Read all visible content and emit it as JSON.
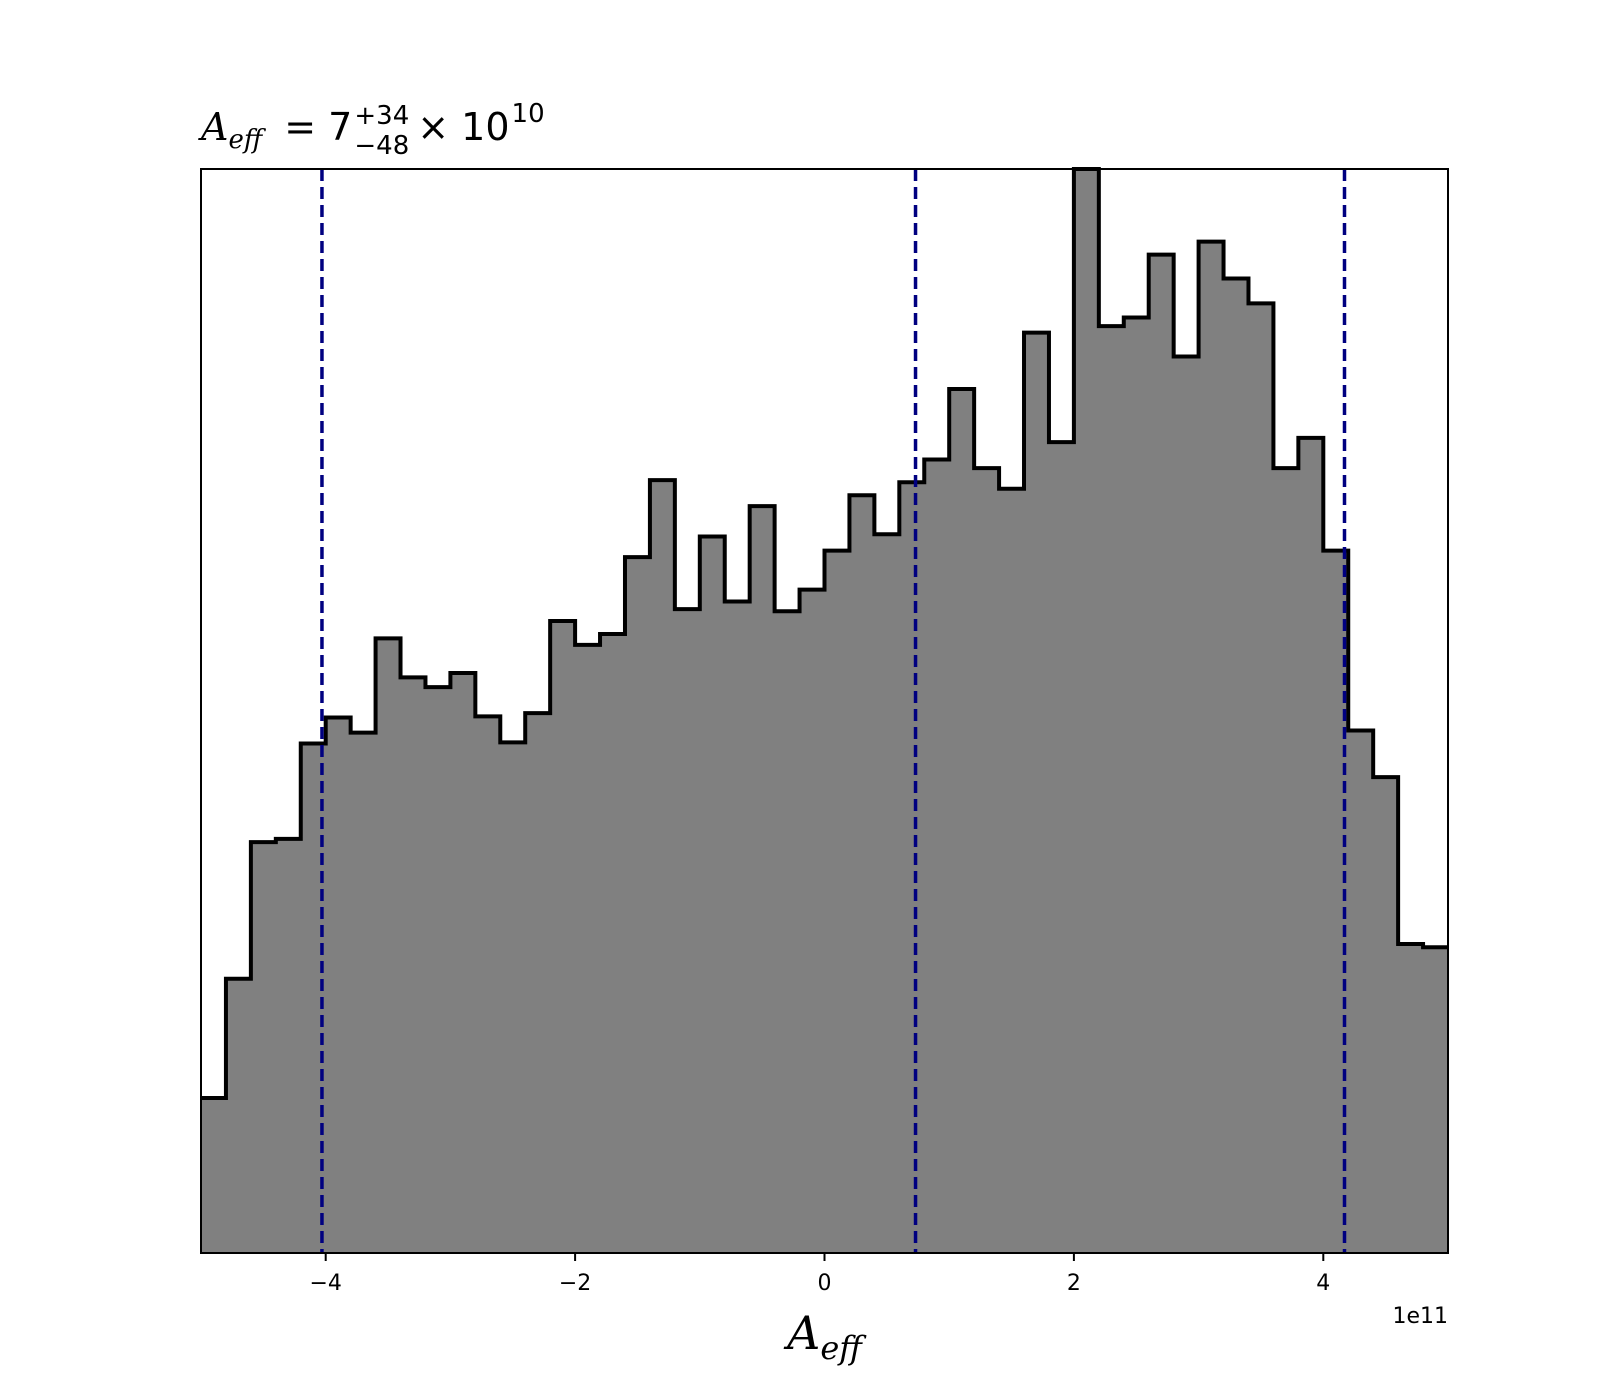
{
  "chart_data": {
    "type": "histogram",
    "title": {
      "var_main": "A",
      "var_sub": "eff",
      "equals": "= 7",
      "sup": "+34",
      "sub": "−48",
      "times": "× 10",
      "exp": "10"
    },
    "xlabel": {
      "main": "A",
      "sub": "eff"
    },
    "offset_text": "1e11",
    "xlim": [
      -5,
      5
    ],
    "ylim": [
      0,
      1
    ],
    "y_axis_visible": false,
    "x_ticks": [
      {
        "value": -4,
        "label": "−4"
      },
      {
        "value": -2,
        "label": "−2"
      },
      {
        "value": 0,
        "label": "0"
      },
      {
        "value": 2,
        "label": "2"
      },
      {
        "value": 4,
        "label": "4"
      }
    ],
    "bin_edges": [
      -5,
      -4.8,
      -4.6,
      -4.4,
      -4.2,
      -4,
      -3.8,
      -3.6,
      -3.4,
      -3.2,
      -3,
      -2.8,
      -2.6,
      -2.4,
      -2.2,
      -2,
      -1.8,
      -1.6,
      -1.4,
      -1.2,
      -1,
      -0.8,
      -0.6,
      -0.4,
      -0.2,
      0,
      0.2,
      0.4,
      0.6,
      0.8,
      1,
      1.2,
      1.4,
      1.6,
      1.8,
      2,
      2.2,
      2.4,
      2.6,
      2.8,
      3,
      3.2,
      3.4,
      3.6,
      3.8,
      4,
      4.2,
      4.4,
      4.6,
      4.8,
      5
    ],
    "counts": [
      0.143,
      0.253,
      0.379,
      0.382,
      0.47,
      0.494,
      0.48,
      0.567,
      0.531,
      0.522,
      0.535,
      0.495,
      0.471,
      0.498,
      0.583,
      0.561,
      0.571,
      0.642,
      0.713,
      0.594,
      0.661,
      0.601,
      0.689,
      0.592,
      0.612,
      0.648,
      0.699,
      0.663,
      0.711,
      0.732,
      0.797,
      0.724,
      0.705,
      0.849,
      0.748,
      1.0,
      0.855,
      0.863,
      0.921,
      0.827,
      0.933,
      0.899,
      0.876,
      0.724,
      0.752,
      0.648,
      0.482,
      0.439,
      0.285,
      0.282
    ],
    "reference_lines": [
      {
        "x": -4.03,
        "style": "dashed",
        "color": "#000080"
      },
      {
        "x": 0.73,
        "style": "dashed",
        "color": "#000080"
      },
      {
        "x": 4.17,
        "style": "dashed",
        "color": "#000080"
      }
    ],
    "colors": {
      "fill": "#808080",
      "edge": "#000000",
      "lines": "#000080"
    }
  }
}
